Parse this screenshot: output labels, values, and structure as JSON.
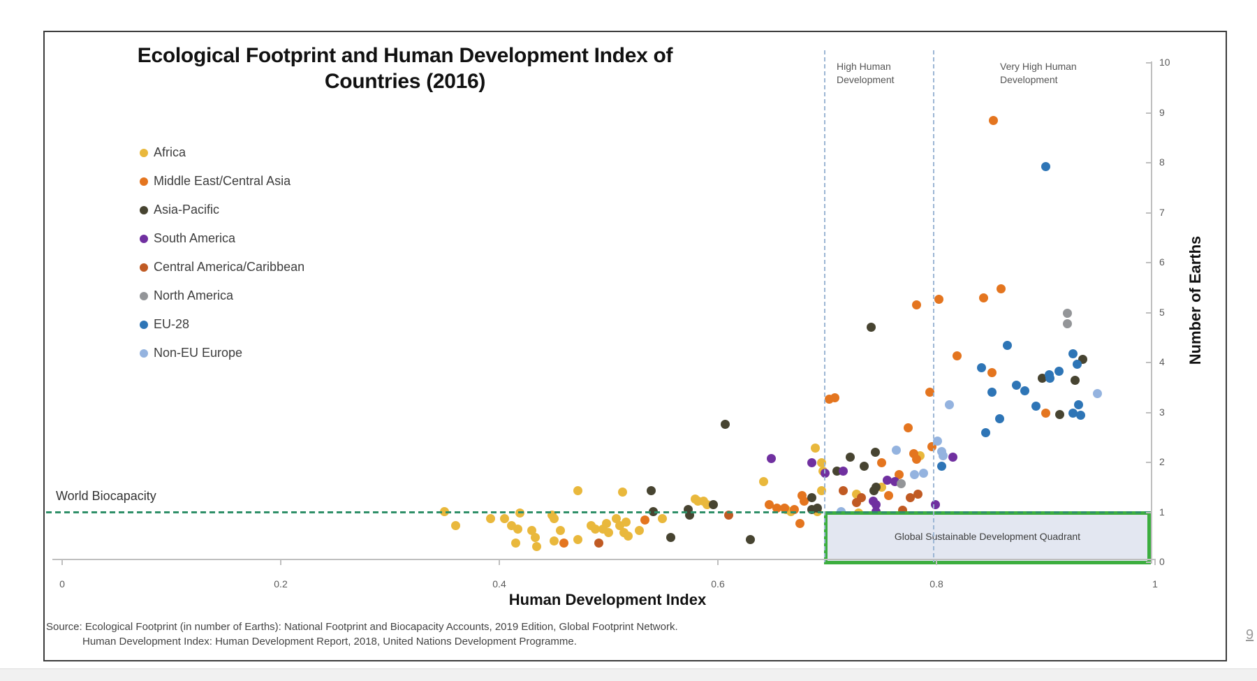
{
  "title": {
    "line1": "Ecological Footprint and Human Development Index of",
    "line2": "Countries (2016)"
  },
  "legend": {
    "items": [
      {
        "key": "africa",
        "label": "Africa",
        "color": "#e9b83c"
      },
      {
        "key": "middle_east_central_asia",
        "label": "Middle East/Central Asia",
        "color": "#e4751f"
      },
      {
        "key": "asia_pacific",
        "label": "Asia-Pacific",
        "color": "#474431"
      },
      {
        "key": "south_america",
        "label": "South America",
        "color": "#7030a0"
      },
      {
        "key": "central_america_caribbean",
        "label": "Central America/Caribbean",
        "color": "#c05a23"
      },
      {
        "key": "north_america",
        "label": "North America",
        "color": "#939598"
      },
      {
        "key": "eu_28",
        "label": "EU-28",
        "color": "#2e75b6"
      },
      {
        "key": "non_eu_europe",
        "label": "Non-EU Europe",
        "color": "#94b3df"
      }
    ]
  },
  "annotations": {
    "world_biocapacity": "World Biocapacity",
    "high_hd_line1": "High Human",
    "high_hd_line2": "Development",
    "very_high_hd_line1": "Very High Human",
    "very_high_hd_line2": "Development",
    "quadrant_label": "Global Sustainable Development Quadrant"
  },
  "axes": {
    "x": {
      "label": "Human Development Index",
      "ticks": [
        "0",
        "0.2",
        "0.4",
        "0.6",
        "0.8",
        "1"
      ],
      "range": [
        0,
        1
      ]
    },
    "y": {
      "label": "Number of Earths",
      "ticks": [
        "0",
        "1",
        "2",
        "3",
        "4",
        "5",
        "6",
        "7",
        "8",
        "9",
        "10"
      ],
      "range": [
        0,
        10
      ]
    }
  },
  "source": {
    "line1": "Source: Ecological Footprint (in number of Earths): National Footprint and Biocapacity Accounts, 2019 Edition, Global Footprint Network.",
    "line2": "Human Development Index: Human Development Report, 2018, United Nations Development Programme."
  },
  "page_number": "9",
  "chart_data": {
    "type": "scatter",
    "xlabel": "Human Development Index",
    "ylabel": "Number of Earths",
    "xlim": [
      0,
      1
    ],
    "ylim": [
      0,
      10
    ],
    "grid": false,
    "legend_position": "upper-left",
    "reference_lines": {
      "horizontal_world_biocapacity": 1.0,
      "vertical_high_human_development": 0.7,
      "vertical_very_high_human_development": 0.8
    },
    "quadrant_box": {
      "x": [
        0.7,
        1.0
      ],
      "y": [
        0,
        1.0
      ],
      "label": "Global Sustainable Development Quadrant"
    },
    "series": [
      {
        "name": "Africa",
        "color": "#e9b83c",
        "points": [
          [
            0.35,
            1.02
          ],
          [
            0.36,
            0.73
          ],
          [
            0.392,
            0.88
          ],
          [
            0.405,
            0.88
          ],
          [
            0.411,
            0.73
          ],
          [
            0.417,
            0.67
          ],
          [
            0.419,
            0.98
          ],
          [
            0.415,
            0.38
          ],
          [
            0.43,
            0.63
          ],
          [
            0.433,
            0.49
          ],
          [
            0.434,
            0.32
          ],
          [
            0.448,
            0.95
          ],
          [
            0.45,
            0.87
          ],
          [
            0.456,
            0.63
          ],
          [
            0.45,
            0.42
          ],
          [
            0.472,
            1.44
          ],
          [
            0.472,
            0.46
          ],
          [
            0.484,
            0.74
          ],
          [
            0.488,
            0.66
          ],
          [
            0.495,
            0.66
          ],
          [
            0.498,
            0.77
          ],
          [
            0.5,
            0.6
          ],
          [
            0.507,
            0.87
          ],
          [
            0.51,
            0.73
          ],
          [
            0.514,
            0.6
          ],
          [
            0.516,
            0.8
          ],
          [
            0.518,
            0.52
          ],
          [
            0.513,
            1.4
          ],
          [
            0.528,
            0.63
          ],
          [
            0.549,
            0.88
          ],
          [
            0.579,
            1.26
          ],
          [
            0.582,
            1.23
          ],
          [
            0.587,
            1.22
          ],
          [
            0.59,
            1.16
          ],
          [
            0.642,
            1.61
          ],
          [
            0.662,
            1.05
          ],
          [
            0.667,
            1.02
          ],
          [
            0.691,
            1.02
          ],
          [
            0.695,
            1.43
          ],
          [
            0.689,
            2.28
          ],
          [
            0.695,
            1.99
          ],
          [
            0.696,
            1.82
          ],
          [
            0.727,
            1.36
          ],
          [
            0.75,
            1.5
          ],
          [
            0.729,
            0.98
          ],
          [
            0.785,
            2.13
          ]
        ]
      },
      {
        "name": "Middle East/Central Asia",
        "color": "#e4751f",
        "points": [
          [
            0.459,
            0.39
          ],
          [
            0.533,
            0.84
          ],
          [
            0.647,
            1.15
          ],
          [
            0.654,
            1.09
          ],
          [
            0.661,
            1.08
          ],
          [
            0.67,
            1.05
          ],
          [
            0.677,
            1.33
          ],
          [
            0.679,
            1.22
          ],
          [
            0.675,
            0.77
          ],
          [
            0.756,
            1.33
          ],
          [
            0.766,
            1.75
          ],
          [
            0.779,
            2.17
          ],
          [
            0.782,
            2.06
          ],
          [
            0.774,
            2.69
          ],
          [
            0.75,
            2.0
          ],
          [
            0.702,
            3.26
          ],
          [
            0.707,
            3.29
          ],
          [
            0.794,
            3.4
          ],
          [
            0.796,
            2.31
          ],
          [
            0.819,
            4.13
          ],
          [
            0.851,
            3.8
          ],
          [
            0.9,
            2.98
          ],
          [
            0.802,
            5.27
          ],
          [
            0.782,
            5.15
          ],
          [
            0.843,
            5.29
          ],
          [
            0.859,
            5.48
          ],
          [
            0.852,
            8.84
          ]
        ]
      },
      {
        "name": "Asia-Pacific",
        "color": "#474431",
        "points": [
          [
            0.541,
            1.02
          ],
          [
            0.539,
            1.44
          ],
          [
            0.557,
            0.49
          ],
          [
            0.596,
            1.16
          ],
          [
            0.573,
            1.05
          ],
          [
            0.574,
            0.94
          ],
          [
            0.63,
            0.45
          ],
          [
            0.607,
            2.76
          ],
          [
            0.686,
            1.3
          ],
          [
            0.686,
            1.05
          ],
          [
            0.691,
            1.08
          ],
          [
            0.709,
            1.82
          ],
          [
            0.721,
            2.1
          ],
          [
            0.734,
            1.92
          ],
          [
            0.745,
            1.51
          ],
          [
            0.743,
            1.44
          ],
          [
            0.744,
            2.2
          ],
          [
            0.766,
            0.87
          ],
          [
            0.74,
            4.7
          ],
          [
            0.897,
            3.68
          ],
          [
            0.927,
            3.65
          ],
          [
            0.913,
            2.96
          ],
          [
            0.934,
            4.06
          ]
        ]
      },
      {
        "name": "South America",
        "color": "#7030a0",
        "points": [
          [
            0.649,
            2.07
          ],
          [
            0.686,
            1.99
          ],
          [
            0.698,
            1.78
          ],
          [
            0.715,
            1.82
          ],
          [
            0.742,
            1.23
          ],
          [
            0.745,
            1.15
          ],
          [
            0.755,
            1.65
          ],
          [
            0.762,
            1.61
          ],
          [
            0.745,
            1.01
          ],
          [
            0.815,
            2.1
          ],
          [
            0.799,
            1.15
          ]
        ]
      },
      {
        "name": "Central America/Caribbean",
        "color": "#c05a23",
        "points": [
          [
            0.491,
            0.39
          ],
          [
            0.61,
            0.94
          ],
          [
            0.715,
            1.44
          ],
          [
            0.731,
            1.3
          ],
          [
            0.727,
            1.19
          ],
          [
            0.776,
            1.29
          ],
          [
            0.783,
            1.37
          ],
          [
            0.769,
            1.04
          ]
        ]
      },
      {
        "name": "North America",
        "color": "#939598",
        "points": [
          [
            0.92,
            4.98
          ],
          [
            0.92,
            4.77
          ],
          [
            0.768,
            1.58
          ]
        ]
      },
      {
        "name": "EU-28",
        "color": "#2e75b6",
        "points": [
          [
            0.805,
            1.92
          ],
          [
            0.841,
            3.9
          ],
          [
            0.851,
            3.4
          ],
          [
            0.865,
            4.34
          ],
          [
            0.873,
            3.54
          ],
          [
            0.881,
            3.43
          ],
          [
            0.891,
            3.12
          ],
          [
            0.93,
            3.15
          ],
          [
            0.925,
            2.98
          ],
          [
            0.932,
            2.94
          ],
          [
            0.925,
            4.18
          ],
          [
            0.929,
            3.96
          ],
          [
            0.912,
            3.82
          ],
          [
            0.903,
            3.75
          ],
          [
            0.904,
            3.69
          ],
          [
            0.858,
            2.87
          ],
          [
            0.845,
            2.6
          ],
          [
            0.9,
            7.93
          ]
        ]
      },
      {
        "name": "Non-EU Europe",
        "color": "#94b3df",
        "points": [
          [
            0.713,
            1.01
          ],
          [
            0.763,
            2.24
          ],
          [
            0.78,
            1.75
          ],
          [
            0.788,
            1.78
          ],
          [
            0.812,
            3.15
          ],
          [
            0.947,
            3.38
          ],
          [
            0.801,
            2.42
          ],
          [
            0.805,
            2.21
          ],
          [
            0.806,
            2.13
          ]
        ]
      }
    ]
  }
}
